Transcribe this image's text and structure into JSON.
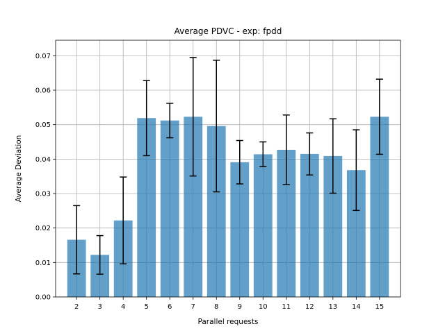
{
  "chart_data": {
    "type": "bar",
    "title": "Average PDVC - exp: fpdd",
    "xlabel": "Parallel requests",
    "ylabel": "Average Deviation",
    "categories": [
      "2",
      "3",
      "4",
      "5",
      "6",
      "7",
      "8",
      "9",
      "10",
      "11",
      "12",
      "13",
      "14",
      "15"
    ],
    "values": [
      0.0166,
      0.0122,
      0.0222,
      0.0519,
      0.0512,
      0.0523,
      0.0496,
      0.0391,
      0.0414,
      0.0427,
      0.0415,
      0.0409,
      0.0368,
      0.0523
    ],
    "error": [
      0.0099,
      0.0056,
      0.0126,
      0.0109,
      0.005,
      0.0172,
      0.0191,
      0.0063,
      0.0036,
      0.0101,
      0.0061,
      0.0108,
      0.0117,
      0.0109
    ],
    "ylim": [
      0,
      0.0745
    ],
    "yticks": [
      0.0,
      0.01,
      0.02,
      0.03,
      0.04,
      0.05,
      0.06,
      0.07
    ],
    "ytick_labels": [
      "0.00",
      "0.01",
      "0.02",
      "0.03",
      "0.04",
      "0.05",
      "0.06",
      "0.07"
    ],
    "grid": true,
    "colors": {
      "bar": "#1f77b4",
      "bar_opacity": 0.7,
      "error_bar": "#000000",
      "grid": "#b0b0b0"
    }
  }
}
